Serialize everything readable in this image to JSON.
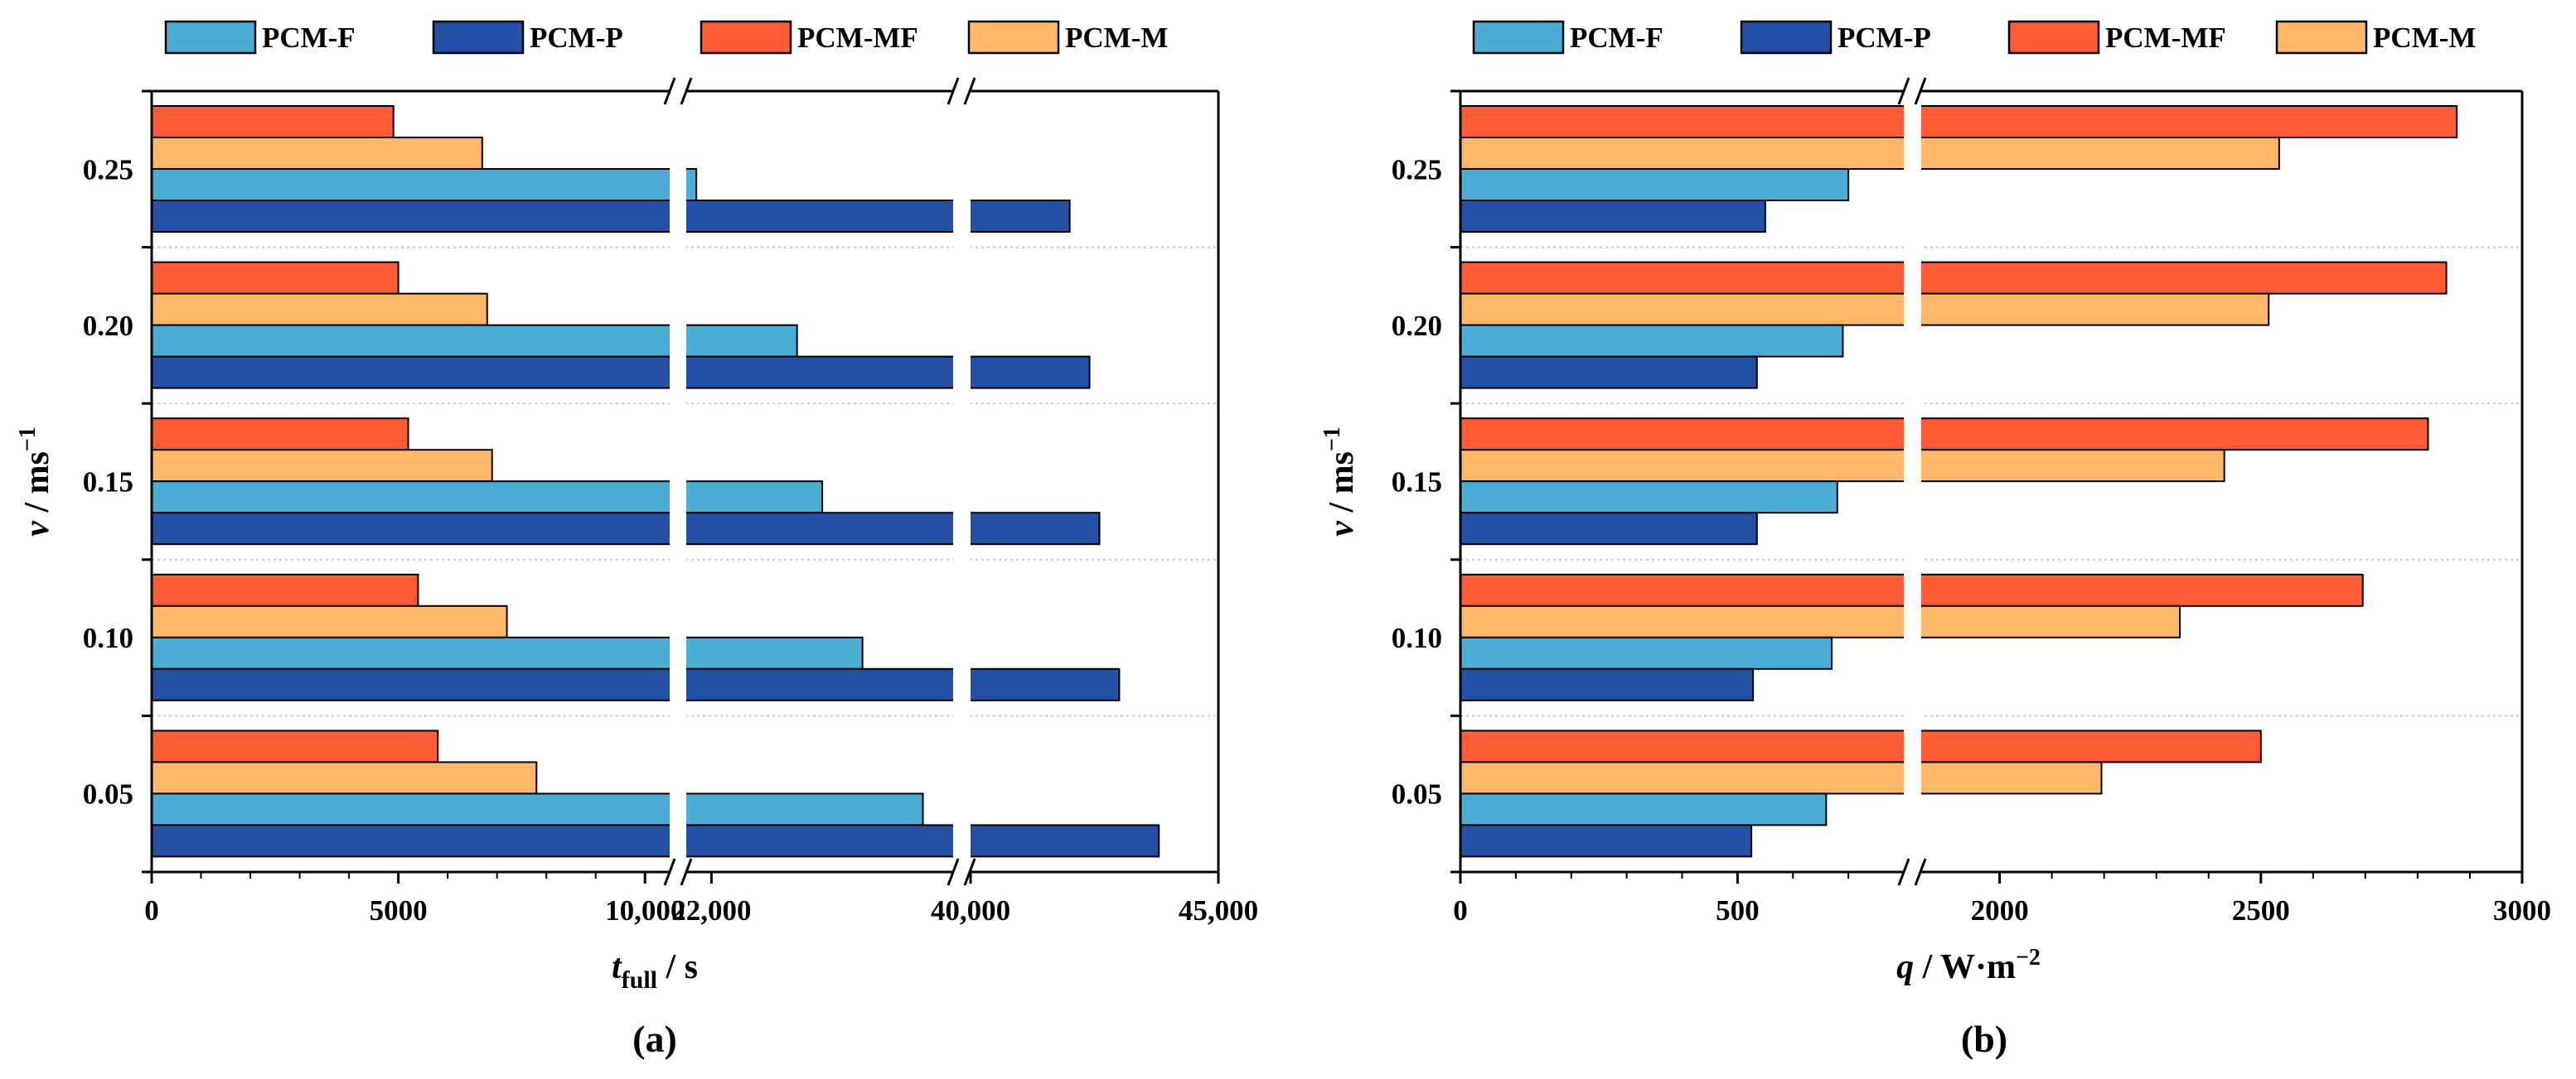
{
  "colors": {
    "PCM-F": "#4badd4",
    "PCM-P": "#2450a6",
    "PCM-MF": "#ff5c36",
    "PCM-M": "#ffb86a",
    "grid": "#c8c8c8"
  },
  "chart_data": [
    {
      "type": "bar",
      "orientation": "horizontal",
      "panel_label": "(a)",
      "xlabel_main": "t",
      "xlabel_sub": "full",
      "xlabel_unit": " / s",
      "ylabel_main": "v",
      "ylabel_unit": " / ms",
      "ylabel_sup": "−1",
      "categories": [
        "0.05",
        "0.10",
        "0.15",
        "0.20",
        "0.25"
      ],
      "legend": [
        "PCM-F",
        "PCM-P",
        "PCM-MF",
        "PCM-M"
      ],
      "series_order_top_to_bottom": [
        "PCM-MF",
        "PCM-M",
        "PCM-F",
        "PCM-P"
      ],
      "series": [
        {
          "name": "PCM-F",
          "values": [
            26200,
            25000,
            24200,
            23700,
            21700
          ]
        },
        {
          "name": "PCM-P",
          "values": [
            43800,
            43000,
            42600,
            42400,
            42000
          ]
        },
        {
          "name": "PCM-MF",
          "values": [
            5800,
            5400,
            5200,
            5000,
            4900
          ]
        },
        {
          "name": "PCM-M",
          "values": [
            7800,
            7200,
            6900,
            6800,
            6700
          ]
        }
      ],
      "axis_breaks": [
        {
          "from": 10500,
          "to": 21500
        },
        {
          "from": 26800,
          "to": 40000
        }
      ],
      "xticks": [
        {
          "value": 0,
          "label": "0"
        },
        {
          "value": 5000,
          "label": "5000"
        },
        {
          "value": 10000,
          "label": "10,000"
        },
        {
          "value": 22000,
          "label": "22,000"
        },
        {
          "value": 40000,
          "label": "40,000"
        },
        {
          "value": 45000,
          "label": "45,000"
        }
      ]
    },
    {
      "type": "bar",
      "orientation": "horizontal",
      "panel_label": "(b)",
      "xlabel_main": "q",
      "xlabel_unit": " / W·m",
      "xlabel_sup": "−2",
      "ylabel_main": "v",
      "ylabel_unit": " / ms",
      "ylabel_sup": "−1",
      "categories": [
        "0.05",
        "0.10",
        "0.15",
        "0.20",
        "0.25"
      ],
      "legend": [
        "PCM-F",
        "PCM-P",
        "PCM-MF",
        "PCM-M"
      ],
      "series_order_top_to_bottom": [
        "PCM-MF",
        "PCM-M",
        "PCM-F",
        "PCM-P"
      ],
      "series": [
        {
          "name": "PCM-F",
          "values": [
            660,
            670,
            680,
            690,
            700
          ]
        },
        {
          "name": "PCM-P",
          "values": [
            525,
            528,
            535,
            535,
            550
          ]
        },
        {
          "name": "PCM-MF",
          "values": [
            2500,
            2695,
            2820,
            2855,
            2875
          ]
        },
        {
          "name": "PCM-M",
          "values": [
            2195,
            2345,
            2430,
            2515,
            2535
          ]
        }
      ],
      "axis_breaks": [
        {
          "from": 800,
          "to": 1850
        }
      ],
      "xticks": [
        {
          "value": 0,
          "label": "0"
        },
        {
          "value": 500,
          "label": "500"
        },
        {
          "value": 2000,
          "label": "2000"
        },
        {
          "value": 2500,
          "label": "2500"
        },
        {
          "value": 3000,
          "label": "3000"
        }
      ]
    }
  ]
}
